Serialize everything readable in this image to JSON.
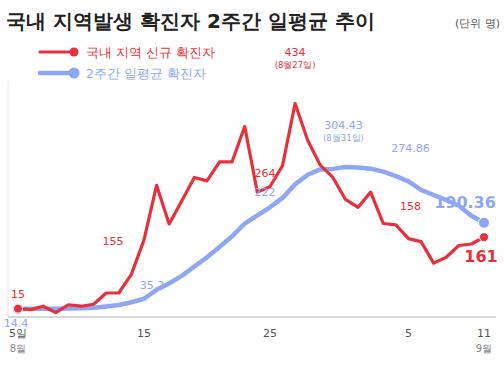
{
  "chart_data": {
    "type": "line",
    "title": "국내 지역발생 확진자 2주간 일평균 추이",
    "ylabel": "(단위 명)",
    "categories": [
      "5일",
      null,
      null,
      null,
      null,
      null,
      null,
      null,
      null,
      null,
      "15",
      null,
      null,
      null,
      null,
      null,
      null,
      null,
      null,
      null,
      "25",
      null,
      null,
      null,
      null,
      null,
      null,
      null,
      null,
      null,
      null,
      "5",
      null,
      null,
      null,
      null,
      null,
      "11"
    ],
    "series": [
      {
        "name": "국내 지역 신규 확진자",
        "color": "#e8303a",
        "values": [
          15,
          13,
          20,
          7,
          23,
          20,
          24,
          47,
          47,
          85,
          155,
          267,
          188,
          235,
          283,
          276,
          315,
          315,
          387,
          253,
          264,
          307,
          434,
          359,
          308,
          283,
          238,
          222,
          253,
          189,
          186,
          158,
          152,
          108,
          120,
          144,
          147,
          161
        ],
        "value_labels": [
          "15",
          null,
          null,
          null,
          null,
          null,
          null,
          null,
          null,
          null,
          "155",
          null,
          null,
          null,
          null,
          null,
          null,
          null,
          null,
          null,
          "264",
          null,
          "434",
          null,
          null,
          null,
          null,
          null,
          null,
          null,
          null,
          "158",
          null,
          null,
          null,
          null,
          null,
          "161"
        ]
      },
      {
        "name": "2주간 일평균 확진자",
        "color": "#8fa6f4",
        "values": [
          14.4,
          14.6,
          15.0,
          14.8,
          15.5,
          16.0,
          16.8,
          19.5,
          22.4,
          28.0,
          35.2,
          53.5,
          66.5,
          81.9,
          101.0,
          119.8,
          140.9,
          162.9,
          188.9,
          205.5,
          222,
          241.2,
          268.9,
          288.4,
          299.4,
          300.5,
          304.43,
          303.1,
          301.0,
          294.8,
          285.6,
          274.86,
          257.6,
          247.2,
          236.9,
          225.3,
          204.8,
          190.36
        ],
        "value_labels": [
          "14.4",
          null,
          null,
          null,
          null,
          null,
          null,
          null,
          null,
          null,
          "35.2",
          null,
          null,
          null,
          null,
          null,
          null,
          null,
          null,
          null,
          "222",
          null,
          null,
          null,
          null,
          null,
          "304.43",
          null,
          null,
          null,
          null,
          "274.86",
          null,
          null,
          null,
          null,
          null,
          "190.36"
        ]
      }
    ],
    "annotations": [
      {
        "text": "8월",
        "category": 0
      },
      {
        "text": "9월",
        "category": 37
      },
      {
        "text": "(8월27일)",
        "series": 0,
        "category": 22
      },
      {
        "text": "(8월31일)",
        "series": 1,
        "category": 26
      }
    ],
    "ylim": [
      0,
      480
    ],
    "tick_labels": "x",
    "grid": false,
    "data_labels": true,
    "legend": "top-left"
  }
}
